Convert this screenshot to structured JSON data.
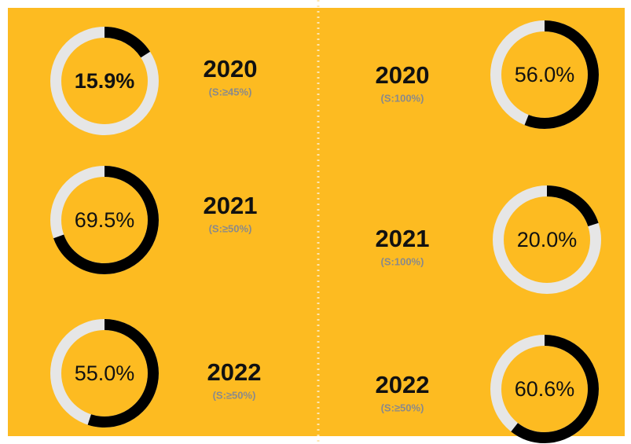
{
  "chart_data": [
    {
      "type": "donut",
      "title": "2020",
      "subtitle": "(S:≥45%)",
      "values": [
        15.9
      ],
      "value_labels": [
        "15.9%"
      ],
      "ylim": [
        0,
        100
      ],
      "color": "#000000",
      "track_color": "#e6e6e6"
    },
    {
      "type": "donut",
      "title": "2021",
      "subtitle": "(S:≥50%)",
      "values": [
        69.5
      ],
      "value_labels": [
        "69.5%"
      ],
      "ylim": [
        0,
        100
      ],
      "color": "#000000",
      "track_color": "#e6e6e6"
    },
    {
      "type": "donut",
      "title": "2022",
      "subtitle": "(S:≥50%)",
      "values": [
        55.0
      ],
      "value_labels": [
        "55.0%"
      ],
      "ylim": [
        0,
        100
      ],
      "color": "#000000",
      "track_color": "#e6e6e6"
    },
    {
      "type": "donut",
      "title": "2020",
      "subtitle": "(S:100%)",
      "values": [
        56.0
      ],
      "value_labels": [
        "56.0%"
      ],
      "ylim": [
        0,
        100
      ],
      "color": "#000000",
      "track_color": "#e6e6e6"
    },
    {
      "type": "donut",
      "title": "2021",
      "subtitle": "(S:100%)",
      "values": [
        20.0
      ],
      "value_labels": [
        "20.0%"
      ],
      "ylim": [
        0,
        100
      ],
      "color": "#000000",
      "track_color": "#e6e6e6"
    },
    {
      "type": "donut",
      "title": "2022",
      "subtitle": "(S:≥50%)",
      "values": [
        60.6
      ],
      "value_labels": [
        "60.6%"
      ],
      "ylim": [
        0,
        100
      ],
      "color": "#000000",
      "track_color": "#e6e6e6"
    }
  ]
}
